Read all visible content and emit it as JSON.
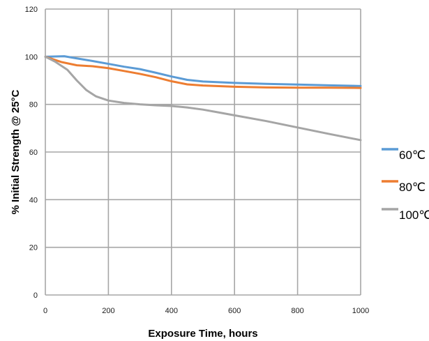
{
  "chart_data": {
    "type": "line",
    "title": "",
    "xlabel": "Exposure Time, hours",
    "ylabel": "% Initial Strength @ 25°C",
    "xlim": [
      0,
      1000
    ],
    "ylim": [
      0,
      120
    ],
    "xticks": [
      0,
      200,
      400,
      600,
      800,
      1000
    ],
    "yticks": [
      0,
      20,
      40,
      60,
      80,
      100,
      120
    ],
    "grid": true,
    "legend_position": "right",
    "series": [
      {
        "name": "60℃",
        "color": "#5b9bd5",
        "x": [
          0,
          60,
          100,
          150,
          200,
          250,
          300,
          350,
          400,
          450,
          500,
          600,
          700,
          800,
          900,
          1000
        ],
        "y": [
          100,
          100.2,
          99.3,
          98.2,
          97,
          95.8,
          94.8,
          93.3,
          91.7,
          90.3,
          89.6,
          89,
          88.6,
          88.3,
          88,
          87.7
        ]
      },
      {
        "name": "80℃",
        "color": "#ed7d31",
        "x": [
          0,
          50,
          100,
          150,
          200,
          250,
          300,
          350,
          400,
          450,
          500,
          600,
          700,
          800,
          900,
          1000
        ],
        "y": [
          100,
          97.8,
          96.4,
          96,
          95.2,
          94,
          92.8,
          91.4,
          89.7,
          88.4,
          87.9,
          87.4,
          87.1,
          87,
          87,
          86.9
        ]
      },
      {
        "name": "100℃",
        "color": "#a5a5a5",
        "x": [
          0,
          30,
          70,
          100,
          130,
          160,
          200,
          250,
          300,
          350,
          400,
          450,
          500,
          550,
          600,
          700,
          800,
          900,
          1000
        ],
        "y": [
          100,
          98,
          94.5,
          90,
          86,
          83.4,
          81.6,
          80.6,
          80,
          79.6,
          79.3,
          78.7,
          77.8,
          76.6,
          75.4,
          73,
          70.3,
          67.6,
          65
        ]
      }
    ]
  }
}
